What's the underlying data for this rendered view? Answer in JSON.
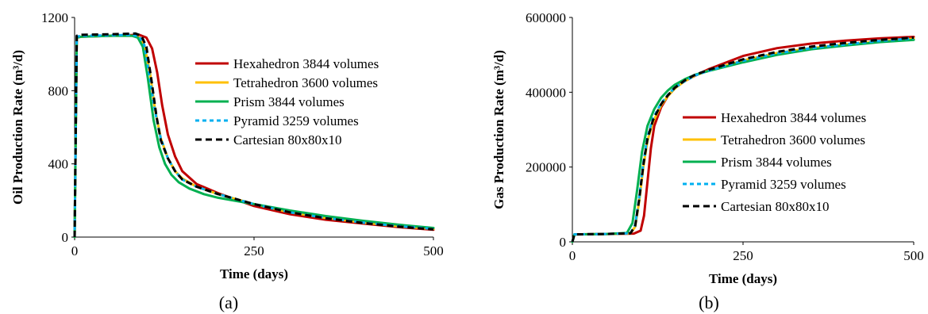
{
  "colors": {
    "Hexahedron": "#c00000",
    "Tetrahedron": "#ffc000",
    "Prism": "#00b050",
    "Pyramid": "#00b0f0",
    "Cartesian": "#000000"
  },
  "chart_data": [
    {
      "type": "line",
      "caption": "(a)",
      "xlabel": "Time (days)",
      "ylabel": "Oil Production Rate (m³/d)",
      "xlim": [
        0,
        500
      ],
      "ylim": [
        0,
        1200
      ],
      "xticks": [
        "0",
        "250",
        "500"
      ],
      "yticks": [
        "0",
        "400",
        "800",
        "1200"
      ],
      "legend_position": "right",
      "series": [
        {
          "name": "Hexahedron 3844 volumes",
          "key": "Hexahedron",
          "dash": "solid",
          "x": [
            0,
            3,
            10,
            50,
            90,
            100,
            108,
            115,
            122,
            130,
            140,
            150,
            170,
            200,
            250,
            300,
            350,
            400,
            450,
            500
          ],
          "y": [
            0,
            1090,
            1095,
            1100,
            1105,
            1090,
            1030,
            900,
            720,
            560,
            440,
            360,
            290,
            240,
            170,
            125,
            95,
            75,
            55,
            40
          ]
        },
        {
          "name": "Tetrahedron 3600 volumes",
          "key": "Tetrahedron",
          "dash": "solid",
          "x": [
            0,
            3,
            10,
            50,
            80,
            90,
            97,
            105,
            112,
            120,
            130,
            140,
            150,
            170,
            200,
            250,
            300,
            350,
            400,
            450,
            500
          ],
          "y": [
            0,
            1090,
            1095,
            1100,
            1100,
            1090,
            1050,
            900,
            700,
            540,
            430,
            360,
            320,
            275,
            235,
            180,
            135,
            105,
            80,
            60,
            45
          ]
        },
        {
          "name": "Prism 3844 volumes",
          "key": "Prism",
          "dash": "solid",
          "x": [
            0,
            3,
            10,
            50,
            80,
            88,
            95,
            102,
            110,
            118,
            126,
            135,
            145,
            160,
            180,
            200,
            250,
            300,
            350,
            400,
            450,
            500
          ],
          "y": [
            0,
            1090,
            1095,
            1100,
            1100,
            1090,
            1040,
            870,
            640,
            490,
            400,
            340,
            300,
            265,
            235,
            215,
            180,
            145,
            115,
            90,
            68,
            50
          ]
        },
        {
          "name": "Pyramid 3259 volumes",
          "key": "Pyramid",
          "dash": "5 4",
          "x": [
            0,
            3,
            10,
            50,
            80,
            90,
            97,
            104,
            112,
            120,
            130,
            140,
            150,
            170,
            200,
            250,
            300,
            350,
            400,
            450,
            500
          ],
          "y": [
            0,
            1095,
            1100,
            1102,
            1105,
            1095,
            1050,
            890,
            690,
            540,
            430,
            360,
            315,
            275,
            235,
            180,
            135,
            105,
            80,
            60,
            45
          ]
        },
        {
          "name": "Cartesian 80x80x10",
          "key": "Cartesian",
          "dash": "8 5",
          "x": [
            0,
            3,
            10,
            50,
            85,
            93,
            100,
            107,
            114,
            120,
            130,
            140,
            150,
            170,
            200,
            250,
            300,
            350,
            400,
            450,
            500
          ],
          "y": [
            0,
            1100,
            1105,
            1108,
            1112,
            1100,
            1040,
            860,
            660,
            530,
            430,
            360,
            315,
            275,
            235,
            180,
            135,
            103,
            78,
            58,
            42
          ]
        }
      ]
    },
    {
      "type": "line",
      "caption": "(b)",
      "xlabel": "Time (days)",
      "ylabel": "Gas Production Rate (m³/d)",
      "xlim": [
        0,
        500
      ],
      "ylim": [
        0,
        600000
      ],
      "xticks": [
        "0",
        "250",
        "500"
      ],
      "yticks": [
        "0",
        "200000",
        "400000",
        "600000"
      ],
      "legend_position": "bottom-right",
      "series": [
        {
          "name": "Hexahedron 3844 volumes",
          "key": "Hexahedron",
          "dash": "solid",
          "x": [
            0,
            3,
            50,
            90,
            100,
            105,
            110,
            115,
            120,
            130,
            140,
            150,
            160,
            175,
            200,
            250,
            300,
            350,
            400,
            450,
            500
          ],
          "y": [
            0,
            20000,
            21000,
            22000,
            30000,
            70000,
            160000,
            250000,
            310000,
            360000,
            390000,
            410000,
            425000,
            440000,
            462000,
            497000,
            518000,
            530000,
            538000,
            544000,
            548000
          ]
        },
        {
          "name": "Tetrahedron 3600 volumes",
          "key": "Tetrahedron",
          "dash": "solid",
          "x": [
            0,
            3,
            50,
            85,
            92,
            98,
            104,
            110,
            118,
            130,
            140,
            150,
            165,
            180,
            200,
            250,
            300,
            350,
            400,
            450,
            500
          ],
          "y": [
            0,
            20000,
            21000,
            23000,
            40000,
            110000,
            200000,
            270000,
            320000,
            365000,
            390000,
            410000,
            430000,
            445000,
            458000,
            485000,
            505000,
            518000,
            528000,
            536000,
            543000
          ]
        },
        {
          "name": "Prism 3844 volumes",
          "key": "Prism",
          "dash": "solid",
          "x": [
            0,
            3,
            50,
            80,
            88,
            95,
            102,
            110,
            120,
            130,
            140,
            150,
            165,
            180,
            200,
            250,
            300,
            350,
            400,
            450,
            500
          ],
          "y": [
            0,
            20000,
            21000,
            24000,
            50000,
            140000,
            240000,
            310000,
            355000,
            385000,
            405000,
            420000,
            435000,
            447000,
            457000,
            480000,
            500000,
            515000,
            525000,
            534000,
            540000
          ]
        },
        {
          "name": "Pyramid 3259 volumes",
          "key": "Pyramid",
          "dash": "5 4",
          "x": [
            0,
            3,
            50,
            85,
            92,
            98,
            104,
            110,
            118,
            130,
            140,
            150,
            165,
            180,
            200,
            250,
            300,
            350,
            400,
            450,
            500
          ],
          "y": [
            0,
            20000,
            21000,
            23000,
            45000,
            120000,
            210000,
            280000,
            330000,
            370000,
            393000,
            412000,
            430000,
            445000,
            458000,
            484000,
            504000,
            518000,
            528000,
            537000,
            544000
          ]
        },
        {
          "name": "Cartesian 80x80x10",
          "key": "Cartesian",
          "dash": "8 5",
          "x": [
            0,
            3,
            50,
            85,
            92,
            98,
            104,
            110,
            118,
            130,
            140,
            150,
            165,
            180,
            200,
            250,
            300,
            350,
            400,
            450,
            500
          ],
          "y": [
            0,
            20000,
            21000,
            23000,
            42000,
            115000,
            205000,
            275000,
            325000,
            368000,
            392000,
            412000,
            432000,
            447000,
            460000,
            488000,
            508000,
            522000,
            532000,
            540000,
            546000
          ]
        }
      ]
    }
  ]
}
